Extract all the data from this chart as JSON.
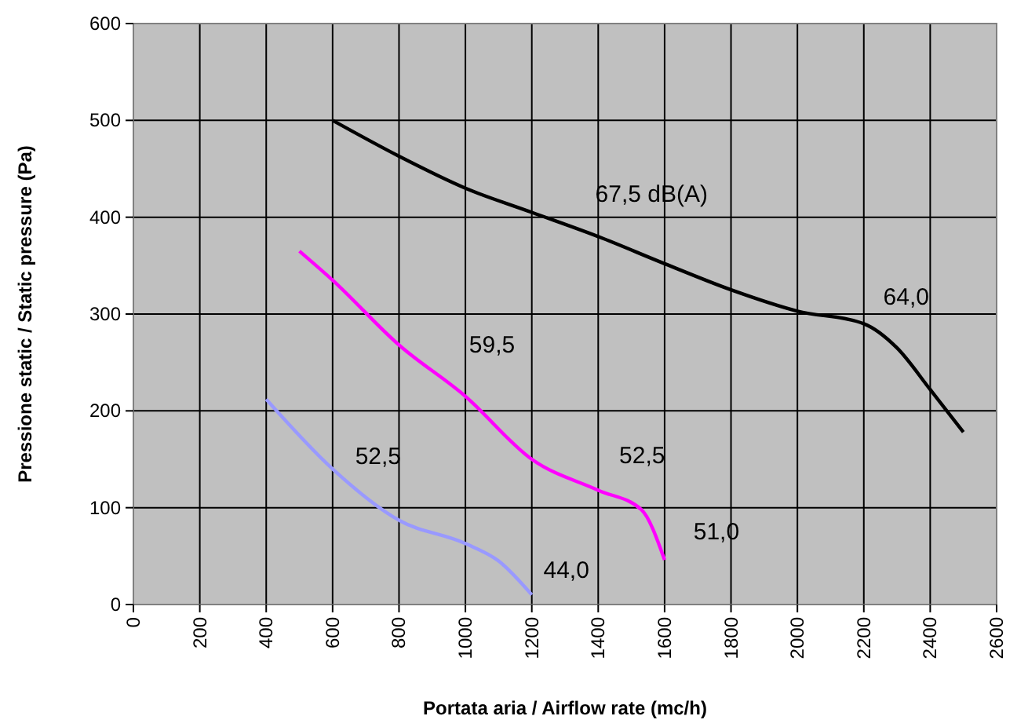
{
  "chart_data": {
    "type": "line",
    "xlabel": "Portata aria / Airflow rate (mc/h)",
    "ylabel": "Pressione static / Static pressure (Pa)",
    "xlim": [
      0,
      2600
    ],
    "xticks": [
      0,
      200,
      400,
      600,
      800,
      1000,
      1200,
      1400,
      1600,
      1800,
      2000,
      2200,
      2400,
      2600
    ],
    "ylim": [
      0,
      600
    ],
    "yticks": [
      0,
      100,
      200,
      300,
      400,
      500,
      600
    ],
    "grid": true,
    "marker": "none",
    "line_style": "solid",
    "series": [
      {
        "color": "#000000",
        "x": [
          600,
          800,
          1000,
          1200,
          1400,
          1600,
          1800,
          2000,
          2200,
          2300,
          2400,
          2500
        ],
        "values": [
          500,
          463,
          430,
          405,
          380,
          352,
          325,
          303,
          290,
          265,
          222,
          178
        ]
      },
      {
        "color": "#ff00ff",
        "x": [
          500,
          600,
          800,
          1000,
          1200,
          1400,
          1530,
          1600
        ],
        "values": [
          365,
          335,
          268,
          215,
          150,
          118,
          98,
          46
        ]
      },
      {
        "color": "#9999ff",
        "x": [
          400,
          600,
          800,
          1000,
          1100,
          1200
        ],
        "values": [
          212,
          140,
          87,
          63,
          45,
          10
        ]
      }
    ],
    "annotations": [
      {
        "text": "67,5 dB(A)",
        "x": 1400,
        "y": 380
      },
      {
        "text": "64,0",
        "x": 2200,
        "y": 290
      },
      {
        "text": "59,5",
        "x": 1000,
        "y": 215
      },
      {
        "text": "52,5",
        "x": 600,
        "y": 140
      },
      {
        "text": "52,5",
        "x": 1400,
        "y": 118
      },
      {
        "text": "51,0",
        "x": 1600,
        "y": 46
      },
      {
        "text": "44,0",
        "x": 1200,
        "y": 10
      }
    ]
  }
}
